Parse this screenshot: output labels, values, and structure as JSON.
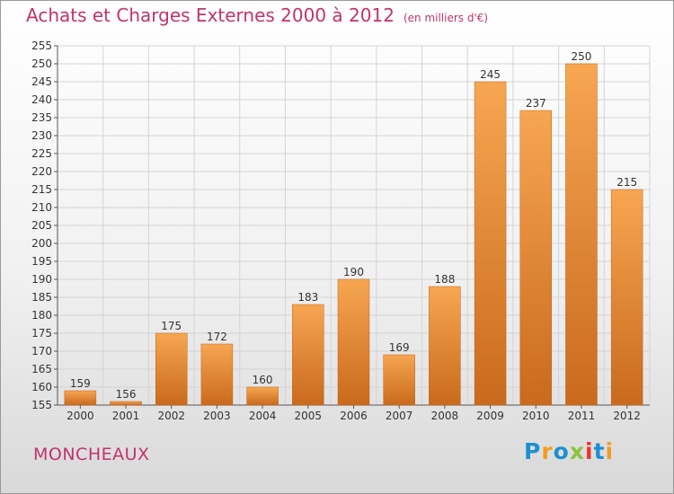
{
  "chart_data": {
    "type": "bar",
    "title": "Achats et Charges Externes 2000 à 2012",
    "subtitle": "(en milliers d'€)",
    "categories": [
      "2000",
      "2001",
      "2002",
      "2003",
      "2004",
      "2005",
      "2006",
      "2007",
      "2008",
      "2009",
      "2010",
      "2011",
      "2012"
    ],
    "values": [
      159,
      156,
      175,
      172,
      160,
      183,
      190,
      169,
      188,
      245,
      237,
      250,
      215
    ],
    "ylim": [
      155,
      255
    ],
    "ytick_step": 5,
    "grid": true,
    "bar_color": "#f0913a"
  },
  "footer": {
    "commune": "MONCHEAUX",
    "logo_letters": [
      {
        "ch": "P",
        "color": "#1e8fd0"
      },
      {
        "ch": "r",
        "color": "#f39c1f"
      },
      {
        "ch": "o",
        "color": "#1e8fd0"
      },
      {
        "ch": "x",
        "color": "#8cc43c"
      },
      {
        "ch": "i",
        "color": "#e8352b"
      },
      {
        "ch": "t",
        "color": "#1e8fd0"
      },
      {
        "ch": "i",
        "color": "#f39c1f"
      }
    ]
  }
}
